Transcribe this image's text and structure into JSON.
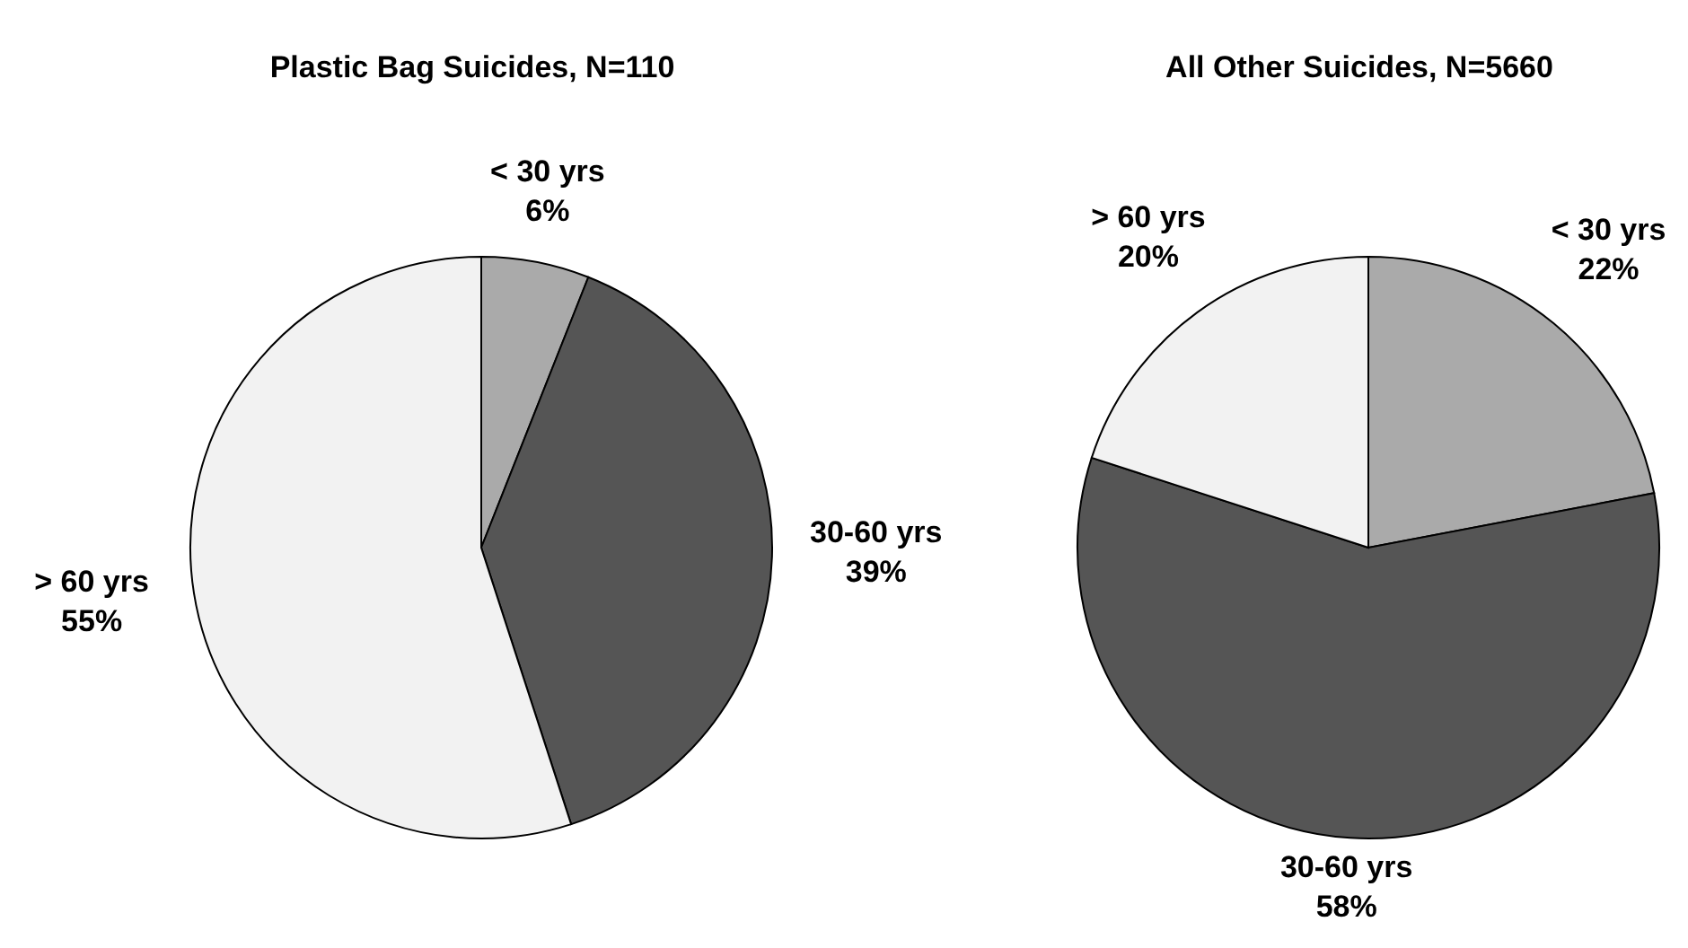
{
  "chart_data": [
    {
      "type": "pie",
      "title": "Plastic Bag Suicides, N=110",
      "categories": [
        "< 30 yrs",
        "30-60 yrs",
        "> 60 yrs"
      ],
      "values": [
        6,
        39,
        55
      ],
      "value_labels": [
        "6%",
        "39%",
        "55%"
      ],
      "colors": [
        "#aaaaaa",
        "#555555",
        "#f2f2f2"
      ]
    },
    {
      "type": "pie",
      "title": "All Other Suicides, N=5660",
      "categories": [
        "< 30 yrs",
        "30-60 yrs",
        "> 60 yrs"
      ],
      "values": [
        22,
        58,
        20
      ],
      "value_labels": [
        "22%",
        "58%",
        "20%"
      ],
      "colors": [
        "#aaaaaa",
        "#555555",
        "#f2f2f2"
      ]
    }
  ]
}
